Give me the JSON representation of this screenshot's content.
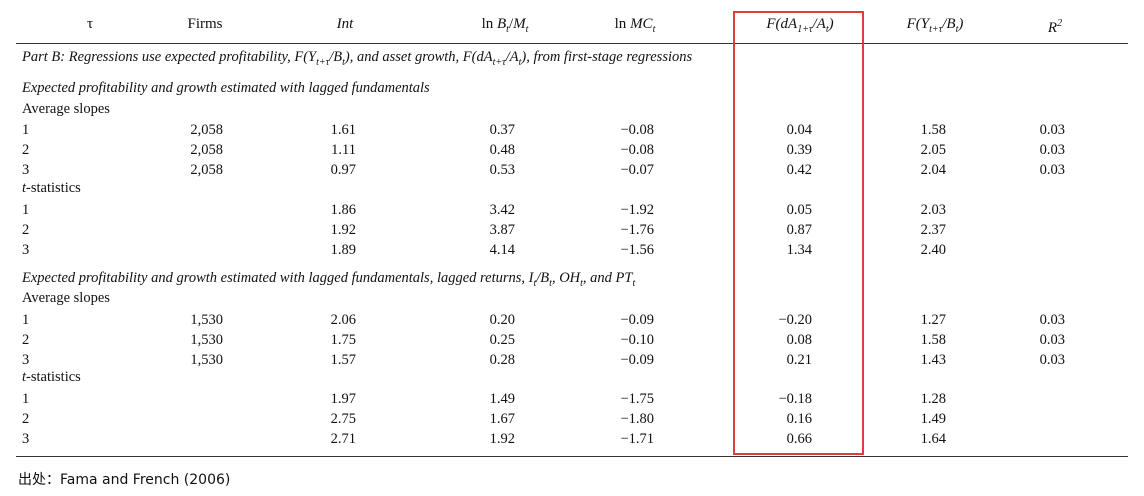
{
  "headers": {
    "tau": "τ",
    "firms": "Firms",
    "int": "Int",
    "ln_bm_pre": "ln ",
    "ln_bm_b": "B",
    "ln_bm_t1": "t",
    "ln_bm_slash": "/",
    "ln_bm_m": "M",
    "ln_bm_t2": "t",
    "ln_mc_pre": "ln ",
    "ln_mc": "MC",
    "ln_mc_t": "t",
    "fda_pre": "F(dA",
    "fda_sub": "1+τ",
    "fda_mid": "/A",
    "fda_sub2": "t",
    "fda_post": ")",
    "fy_pre": "F(Y",
    "fy_sub": "t+τ",
    "fy_mid": "/B",
    "fy_sub2": "t",
    "fy_post": ")",
    "r2": "R",
    "r2_sup": "2"
  },
  "part_b": {
    "pre": "Part B: Regressions use expected profitability, F(Y",
    "sub1": "t+τ",
    "mid1": "/B",
    "sub2": "t",
    "mid2": "), and asset growth, F(dA",
    "sub3": "t+τ",
    "mid3": "/A",
    "sub4": "t",
    "post": "), from first-stage regressions"
  },
  "section1": {
    "title": "Expected profitability and growth estimated with lagged fundamentals",
    "avg_label": "Average slopes",
    "avg_rows": [
      {
        "tau": "1",
        "firms": "2,058",
        "int": "1.61",
        "bm": "0.37",
        "mc": "−0.08",
        "fda": "0.04",
        "fy": "1.58",
        "r2": "0.03"
      },
      {
        "tau": "2",
        "firms": "2,058",
        "int": "1.11",
        "bm": "0.48",
        "mc": "−0.08",
        "fda": "0.39",
        "fy": "2.05",
        "r2": "0.03"
      },
      {
        "tau": "3",
        "firms": "2,058",
        "int": "0.97",
        "bm": "0.53",
        "mc": "−0.07",
        "fda": "0.42",
        "fy": "2.04",
        "r2": "0.03"
      }
    ],
    "t_label_pre": "t",
    "t_label_post": "-statistics",
    "t_rows": [
      {
        "tau": "1",
        "int": "1.86",
        "bm": "3.42",
        "mc": "−1.92",
        "fda": "0.05",
        "fy": "2.03"
      },
      {
        "tau": "2",
        "int": "1.92",
        "bm": "3.87",
        "mc": "−1.76",
        "fda": "0.87",
        "fy": "2.37"
      },
      {
        "tau": "3",
        "int": "1.89",
        "bm": "4.14",
        "mc": "−1.56",
        "fda": "1.34",
        "fy": "2.40"
      }
    ]
  },
  "section2": {
    "title_pre": "Expected profitability and growth estimated with lagged fundamentals, lagged returns, I",
    "title_s1": "t",
    "title_m1": "/B",
    "title_s2": "t",
    "title_m2": ", OH",
    "title_s3": "t",
    "title_m3": ", and PT",
    "title_s4": "t",
    "avg_label": "Average slopes",
    "avg_rows": [
      {
        "tau": "1",
        "firms": "1,530",
        "int": "2.06",
        "bm": "0.20",
        "mc": "−0.09",
        "fda": "−0.20",
        "fy": "1.27",
        "r2": "0.03"
      },
      {
        "tau": "2",
        "firms": "1,530",
        "int": "1.75",
        "bm": "0.25",
        "mc": "−0.10",
        "fda": "0.08",
        "fy": "1.58",
        "r2": "0.03"
      },
      {
        "tau": "3",
        "firms": "1,530",
        "int": "1.57",
        "bm": "0.28",
        "mc": "−0.09",
        "fda": "0.21",
        "fy": "1.43",
        "r2": "0.03"
      }
    ],
    "t_label_pre": "t",
    "t_label_post": "-statistics",
    "t_rows": [
      {
        "tau": "1",
        "int": "1.97",
        "bm": "1.49",
        "mc": "−1.75",
        "fda": "−0.18",
        "fy": "1.28"
      },
      {
        "tau": "2",
        "int": "2.75",
        "bm": "1.67",
        "mc": "−1.80",
        "fda": "0.16",
        "fy": "1.49"
      },
      {
        "tau": "3",
        "int": "2.71",
        "bm": "1.92",
        "mc": "−1.71",
        "fda": "0.66",
        "fy": "1.64"
      }
    ]
  },
  "source": "出处：Fama and French (2006)",
  "highlight_color": "#e23b3b"
}
